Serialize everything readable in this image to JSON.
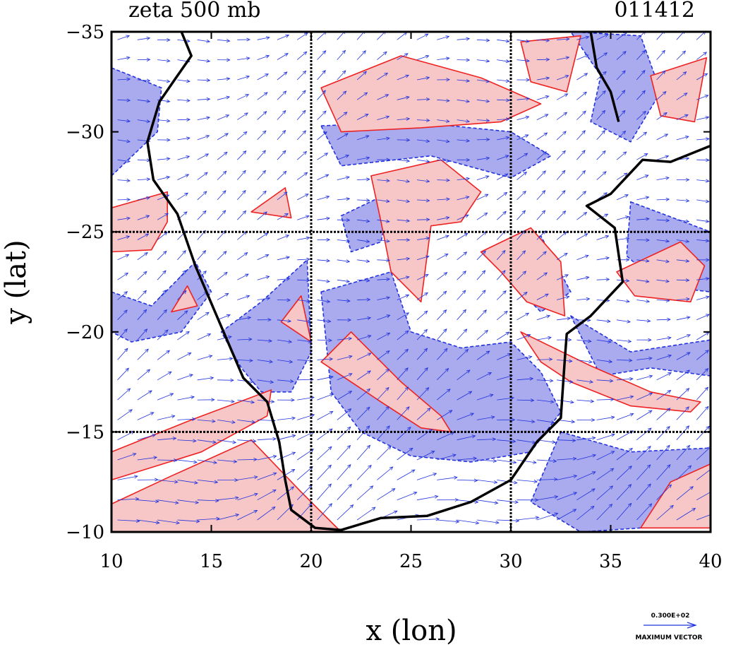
{
  "chart_data": {
    "type": "heatmap",
    "title": "zeta 500 mb",
    "date_label": "011412",
    "xlabel": "x (lon)",
    "ylabel": "y (lat)",
    "xlim": [
      10,
      40
    ],
    "ylim": [
      -35,
      -10
    ],
    "x_ticks": [
      10,
      15,
      20,
      25,
      30,
      35,
      40
    ],
    "y_ticks": [
      -35,
      -30,
      -25,
      -20,
      -15,
      -10
    ],
    "grid": true,
    "grid_lines_x": [
      20,
      30
    ],
    "grid_lines_y": [
      -25,
      -15
    ],
    "colors": {
      "positive_fill": "#f7c6c6",
      "positive_contour": "#ee2222",
      "negative_fill": "#aaaaee",
      "negative_contour": "#2233dd",
      "vector": "#2233dd",
      "coast": "#000000"
    },
    "legend": {
      "vector_value": "0.300E+02",
      "vector_label": "MAXIMUM VECTOR",
      "placement": "bottom-right"
    },
    "coastline": [
      [
        13.5,
        -35
      ],
      [
        14.0,
        -33.8
      ],
      [
        13.3,
        -32.8
      ],
      [
        12.4,
        -31.5
      ],
      [
        11.8,
        -29.5
      ],
      [
        12.1,
        -27.6
      ],
      [
        13.3,
        -25.9
      ],
      [
        14.2,
        -23.3
      ],
      [
        15.1,
        -21.2
      ],
      [
        16.0,
        -19.1
      ],
      [
        16.6,
        -17.7
      ],
      [
        17.8,
        -16.5
      ],
      [
        18.4,
        -14.5
      ],
      [
        18.7,
        -12.6
      ],
      [
        19.0,
        -11.1
      ],
      [
        20.2,
        -10.2
      ],
      [
        21.5,
        -10.1
      ],
      [
        23.5,
        -10.7
      ],
      [
        25.8,
        -10.8
      ],
      [
        28.0,
        -11.5
      ],
      [
        30.0,
        -12.6
      ],
      [
        31.3,
        -14.5
      ],
      [
        32.5,
        -15.7
      ],
      [
        32.7,
        -18.6
      ],
      [
        32.8,
        -19.9
      ],
      [
        34.0,
        -20.8
      ],
      [
        35.6,
        -22.5
      ],
      [
        35.2,
        -25.2
      ],
      [
        33.8,
        -26.3
      ],
      [
        35.0,
        -26.9
      ],
      [
        36.6,
        -28.6
      ],
      [
        38.0,
        -28.5
      ],
      [
        40.0,
        -29.3
      ]
    ],
    "coastline2": [
      [
        34.0,
        -35
      ],
      [
        34.3,
        -33.2
      ],
      [
        35.0,
        -32.0
      ],
      [
        35.4,
        -30.5
      ]
    ],
    "positive_regions": [
      [
        [
          10,
          -14.0
        ],
        [
          14,
          -15.6
        ],
        [
          18,
          -17.1
        ],
        [
          17.8,
          -15.8
        ],
        [
          14.5,
          -14.0
        ],
        [
          10,
          -12.6
        ]
      ],
      [
        [
          10,
          -11.4
        ],
        [
          13,
          -12.8
        ],
        [
          17,
          -14.6
        ],
        [
          19.5,
          -12.0
        ],
        [
          21.5,
          -10.0
        ],
        [
          10,
          -10.0
        ]
      ],
      [
        [
          10,
          -24.0
        ],
        [
          10,
          -26.2
        ],
        [
          12.8,
          -27.0
        ],
        [
          12.8,
          -25.5
        ],
        [
          12.0,
          -24.1
        ]
      ],
      [
        [
          13.0,
          -21.0
        ],
        [
          13.8,
          -22.3
        ],
        [
          14.3,
          -21.3
        ]
      ],
      [
        [
          20.5,
          -32.2
        ],
        [
          24.5,
          -33.8
        ],
        [
          28.5,
          -32.7
        ],
        [
          31.5,
          -31.4
        ],
        [
          29.5,
          -30.5
        ],
        [
          25.5,
          -30.2
        ],
        [
          21.5,
          -30.0
        ]
      ],
      [
        [
          30.5,
          -34.5
        ],
        [
          33.5,
          -34.8
        ],
        [
          32.8,
          -32.0
        ],
        [
          31.0,
          -32.5
        ]
      ],
      [
        [
          37.0,
          -32.8
        ],
        [
          39.8,
          -33.7
        ],
        [
          39.2,
          -30.5
        ],
        [
          37.5,
          -30.8
        ]
      ],
      [
        [
          23.0,
          -27.8
        ],
        [
          26.5,
          -28.6
        ],
        [
          28.5,
          -27.0
        ],
        [
          27.5,
          -25.5
        ],
        [
          26.0,
          -25.3
        ],
        [
          25.5,
          -21.5
        ],
        [
          24.0,
          -23.0
        ],
        [
          23.5,
          -25.5
        ]
      ],
      [
        [
          28.5,
          -24.0
        ],
        [
          31.0,
          -25.2
        ],
        [
          32.5,
          -23.5
        ],
        [
          32.7,
          -20.8
        ],
        [
          30.8,
          -21.5
        ],
        [
          29.5,
          -23.0
        ]
      ],
      [
        [
          30.5,
          -20.0
        ],
        [
          34.0,
          -18.3
        ],
        [
          37.0,
          -17.0
        ],
        [
          39.5,
          -16.5
        ],
        [
          39.0,
          -16.0
        ],
        [
          36.0,
          -16.3
        ],
        [
          33.0,
          -17.5
        ],
        [
          31.5,
          -18.5
        ]
      ],
      [
        [
          35.3,
          -23.0
        ],
        [
          38.5,
          -24.5
        ],
        [
          39.7,
          -23.3
        ],
        [
          39.0,
          -21.5
        ],
        [
          36.2,
          -21.8
        ]
      ],
      [
        [
          20.5,
          -18.5
        ],
        [
          22.0,
          -20.0
        ],
        [
          24.5,
          -17.5
        ],
        [
          26.5,
          -15.8
        ],
        [
          27.0,
          -15.0
        ],
        [
          25.5,
          -15.2
        ],
        [
          23.5,
          -16.5
        ]
      ],
      [
        [
          36.5,
          -10.2
        ],
        [
          40.0,
          -10.2
        ],
        [
          40.0,
          -13.4
        ],
        [
          38.0,
          -12.5
        ]
      ],
      [
        [
          17.0,
          -26.0
        ],
        [
          18.7,
          -27.2
        ],
        [
          19.0,
          -25.7
        ]
      ],
      [
        [
          18.5,
          -20.5
        ],
        [
          19.5,
          -21.8
        ],
        [
          20.0,
          -19.5
        ]
      ]
    ],
    "negative_regions": [
      [
        [
          10,
          -33.2
        ],
        [
          12.5,
          -32.2
        ],
        [
          12.3,
          -30.0
        ],
        [
          10,
          -27.8
        ]
      ],
      [
        [
          10,
          -22.0
        ],
        [
          12.0,
          -21.3
        ],
        [
          14.2,
          -23.5
        ],
        [
          15.0,
          -22.0
        ],
        [
          13.5,
          -20.0
        ],
        [
          11.0,
          -19.5
        ],
        [
          10,
          -20.0
        ]
      ],
      [
        [
          10,
          -10.0
        ],
        [
          11.5,
          -11.6
        ],
        [
          15.0,
          -12.5
        ],
        [
          17.0,
          -13.5
        ],
        [
          16.0,
          -11.5
        ],
        [
          13.0,
          -10.4
        ],
        [
          18.5,
          -10.0
        ]
      ],
      [
        [
          15.5,
          -20.0
        ],
        [
          17.5,
          -21.5
        ],
        [
          19.8,
          -23.6
        ],
        [
          20.0,
          -19.0
        ],
        [
          19.0,
          -17.0
        ],
        [
          17.5,
          -17.0
        ],
        [
          16.5,
          -18.2
        ]
      ],
      [
        [
          20.5,
          -22.0
        ],
        [
          24.0,
          -23.0
        ],
        [
          25.0,
          -20.0
        ],
        [
          27.5,
          -19.2
        ],
        [
          30.0,
          -19.5
        ],
        [
          31.5,
          -18.0
        ],
        [
          32.5,
          -16.0
        ],
        [
          31.0,
          -14.0
        ],
        [
          28.0,
          -13.5
        ],
        [
          25.0,
          -13.8
        ],
        [
          22.5,
          -15.0
        ],
        [
          21.0,
          -17.0
        ]
      ],
      [
        [
          20.5,
          -30.3
        ],
        [
          25.0,
          -30.5
        ],
        [
          30.0,
          -30.0
        ],
        [
          32.0,
          -28.8
        ],
        [
          30.0,
          -27.7
        ],
        [
          26.0,
          -28.8
        ],
        [
          21.5,
          -28.3
        ]
      ],
      [
        [
          33.0,
          -35.0
        ],
        [
          36.5,
          -34.8
        ],
        [
          37.5,
          -32.0
        ],
        [
          36.0,
          -29.5
        ],
        [
          34.0,
          -30.5
        ],
        [
          34.5,
          -32.8
        ]
      ],
      [
        [
          36.0,
          -26.5
        ],
        [
          40.0,
          -25.0
        ],
        [
          40.0,
          -22.0
        ],
        [
          37.5,
          -22.3
        ],
        [
          35.8,
          -23.8
        ]
      ],
      [
        [
          32.5,
          -15.0
        ],
        [
          36.0,
          -14.0
        ],
        [
          40.0,
          -14.2
        ],
        [
          40.0,
          -12.4
        ],
        [
          36.5,
          -10.2
        ],
        [
          33.5,
          -10.0
        ],
        [
          31.0,
          -11.5
        ]
      ],
      [
        [
          33.0,
          -20.8
        ],
        [
          36.0,
          -19.0
        ],
        [
          40.0,
          -19.6
        ],
        [
          40.0,
          -17.8
        ],
        [
          37.0,
          -18.2
        ],
        [
          34.5,
          -17.8
        ]
      ],
      [
        [
          21.5,
          -25.8
        ],
        [
          24.0,
          -27.0
        ],
        [
          23.5,
          -24.5
        ],
        [
          22.0,
          -24.0
        ]
      ],
      [
        [
          29.0,
          -24.0
        ],
        [
          31.5,
          -24.8
        ],
        [
          33.0,
          -22.0
        ],
        [
          31.5,
          -21.0
        ],
        [
          30.0,
          -22.5
        ]
      ]
    ],
    "max_vector": 30
  }
}
